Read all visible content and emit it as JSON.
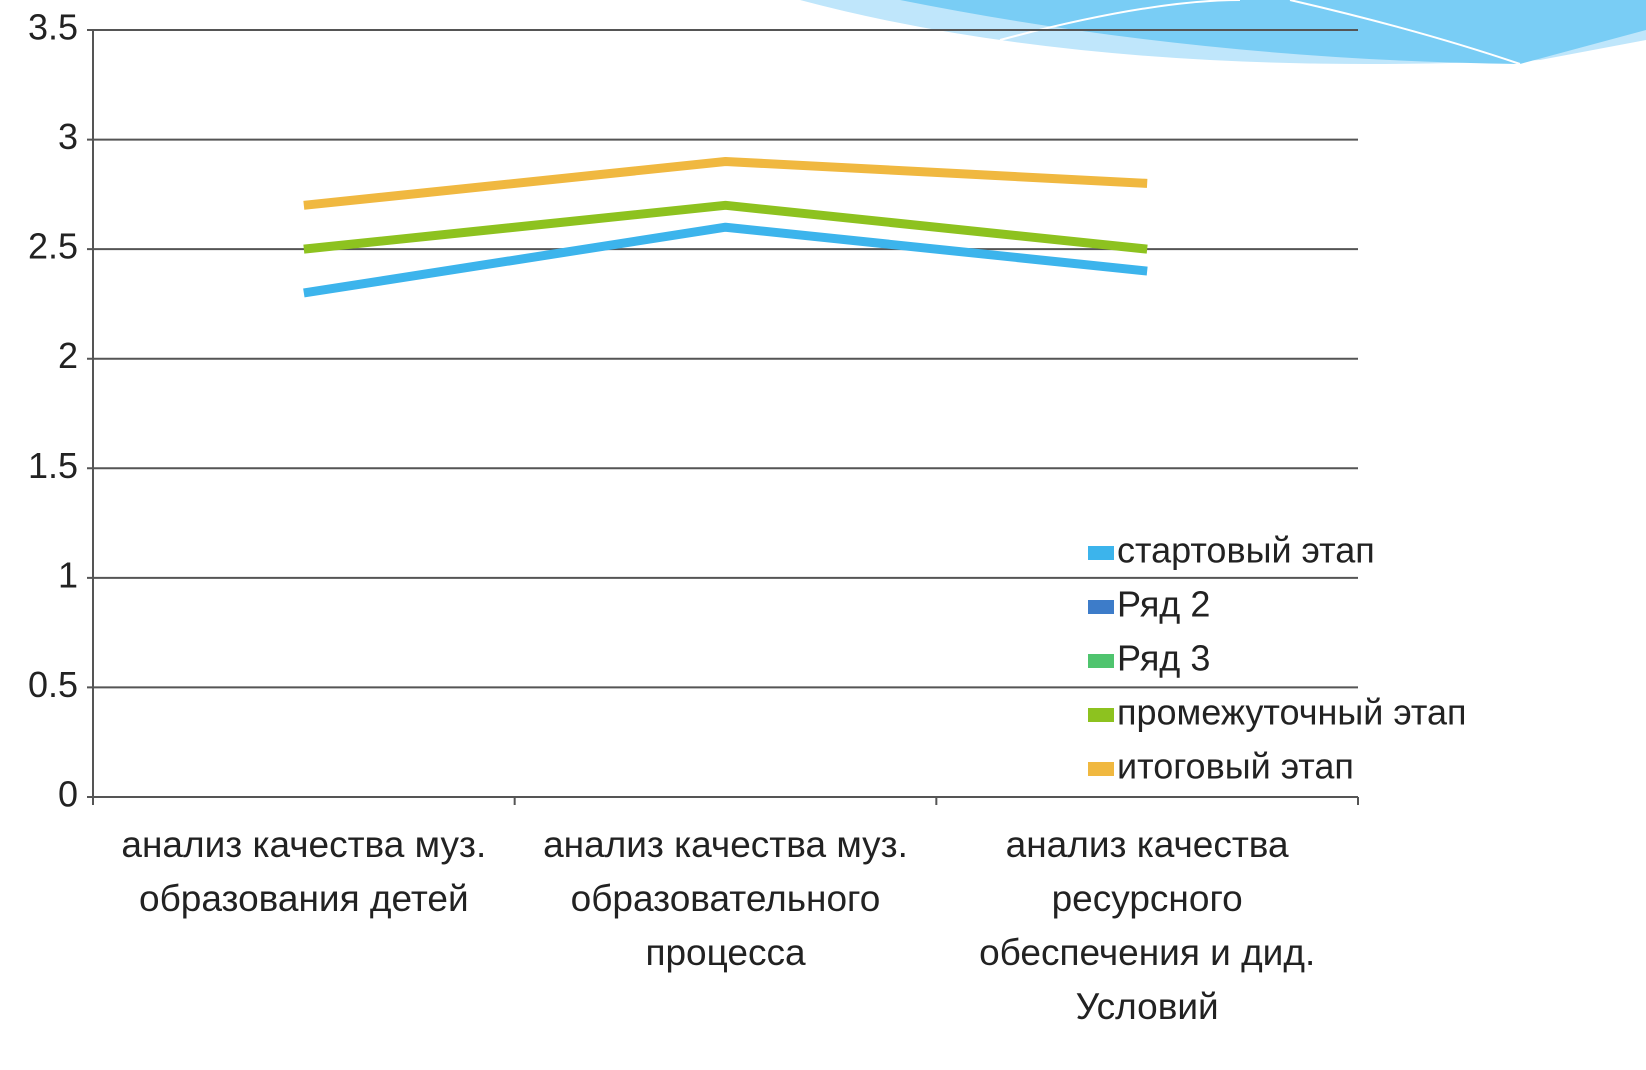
{
  "chart_data": {
    "type": "line",
    "categories": [
      "анализ качества муз. образования детей",
      "анализ качества муз. образовательного процесса",
      "анализ качества ресурсного обеспечения и дид. Условий"
    ],
    "series": [
      {
        "name": "стартовый этап",
        "color": "#3cb4ec",
        "values": [
          2.3,
          2.6,
          2.4
        ]
      },
      {
        "name": "Ряд 2",
        "color": "#3d7cc9",
        "values": [
          null,
          null,
          null
        ]
      },
      {
        "name": "Ряд 3",
        "color": "#4fc46e",
        "values": [
          null,
          null,
          null
        ]
      },
      {
        "name": "промежуточный этап",
        "color": "#8dc21f",
        "values": [
          2.5,
          2.7,
          2.5
        ]
      },
      {
        "name": "итоговый этап",
        "color": "#f0b840",
        "values": [
          2.7,
          2.9,
          2.8
        ]
      }
    ],
    "ylim": [
      0,
      3.5
    ],
    "yticks": [
      0,
      0.5,
      1,
      1.5,
      2,
      2.5,
      3,
      3.5
    ],
    "grid": true,
    "legend": "right"
  }
}
